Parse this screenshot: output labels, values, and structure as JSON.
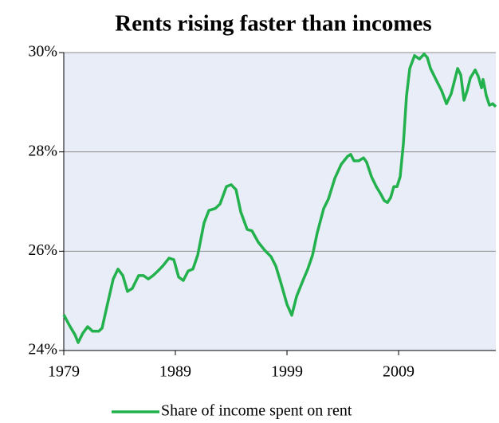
{
  "chart_data": {
    "type": "line",
    "title": "Rents rising faster than incomes",
    "x": [
      1979,
      1979.57,
      1980,
      1980.29,
      1980.71,
      1981.14,
      1981.57,
      1982.14,
      1982.43,
      1982.86,
      1983.43,
      1983.86,
      1984.29,
      1984.71,
      1985.14,
      1985.71,
      1986.14,
      1986.57,
      1987,
      1987.43,
      1987.86,
      1988.43,
      1988.86,
      1989.29,
      1989.71,
      1990.14,
      1990.57,
      1991,
      1991.57,
      1992,
      1992.57,
      1993,
      1993.57,
      1994,
      1994.43,
      1994.86,
      1995.43,
      1995.86,
      1996.43,
      1997,
      1997.57,
      1998,
      1998.43,
      1999,
      1999.43,
      1999.86,
      2000.43,
      2000.86,
      2001.29,
      2001.71,
      2002.29,
      2002.71,
      2003.29,
      2003.86,
      2004.43,
      2004.71,
      2005,
      2005.43,
      2005.86,
      2006.14,
      2006.57,
      2007,
      2007.43,
      2007.71,
      2008,
      2008.29,
      2008.57,
      2008.86,
      2009.14,
      2009.43,
      2009.71,
      2010,
      2010.43,
      2010.86,
      2011.29,
      2011.57,
      2011.86,
      2012.43,
      2012.86,
      2013.29,
      2013.71,
      2014.29,
      2014.57,
      2014.86,
      2015.14,
      2015.43,
      2015.86,
      2016.14,
      2016.43,
      2016.57,
      2016.86,
      2017.14,
      2017.43,
      2017.71
    ],
    "series": [
      {
        "name": "Share of income spent on rent",
        "color": "#22b14c",
        "values": [
          24.72,
          24.48,
          24.32,
          24.16,
          24.35,
          24.48,
          24.39,
          24.39,
          24.45,
          24.88,
          25.44,
          25.64,
          25.51,
          25.19,
          25.25,
          25.51,
          25.51,
          25.44,
          25.51,
          25.6,
          25.7,
          25.86,
          25.83,
          25.48,
          25.41,
          25.6,
          25.64,
          25.92,
          26.57,
          26.82,
          26.86,
          26.95,
          27.3,
          27.34,
          27.24,
          26.79,
          26.44,
          26.41,
          26.18,
          26.02,
          25.89,
          25.7,
          25.38,
          24.93,
          24.71,
          25.09,
          25.41,
          25.64,
          25.92,
          26.37,
          26.86,
          27.05,
          27.47,
          27.75,
          27.91,
          27.95,
          27.82,
          27.82,
          27.88,
          27.79,
          27.5,
          27.3,
          27.14,
          27.02,
          26.98,
          27.08,
          27.3,
          27.3,
          27.5,
          28.17,
          29.13,
          29.68,
          29.94,
          29.87,
          29.97,
          29.9,
          29.68,
          29.42,
          29.23,
          28.97,
          29.17,
          29.68,
          29.55,
          29.04,
          29.23,
          29.49,
          29.65,
          29.52,
          29.29,
          29.46,
          29.13,
          28.94,
          28.97,
          28.91
        ]
      }
    ],
    "xlim": [
      1979,
      2017.71
    ],
    "xticks": [
      1979,
      1989,
      1999,
      2009
    ],
    "ylim": [
      24,
      30
    ],
    "yticks": [
      {
        "value": 24,
        "label": "24%"
      },
      {
        "value": 26,
        "label": "26%"
      },
      {
        "value": 28,
        "label": "28%"
      },
      {
        "value": 30,
        "label": "30%"
      }
    ],
    "grid": true,
    "legend": "bottom"
  }
}
